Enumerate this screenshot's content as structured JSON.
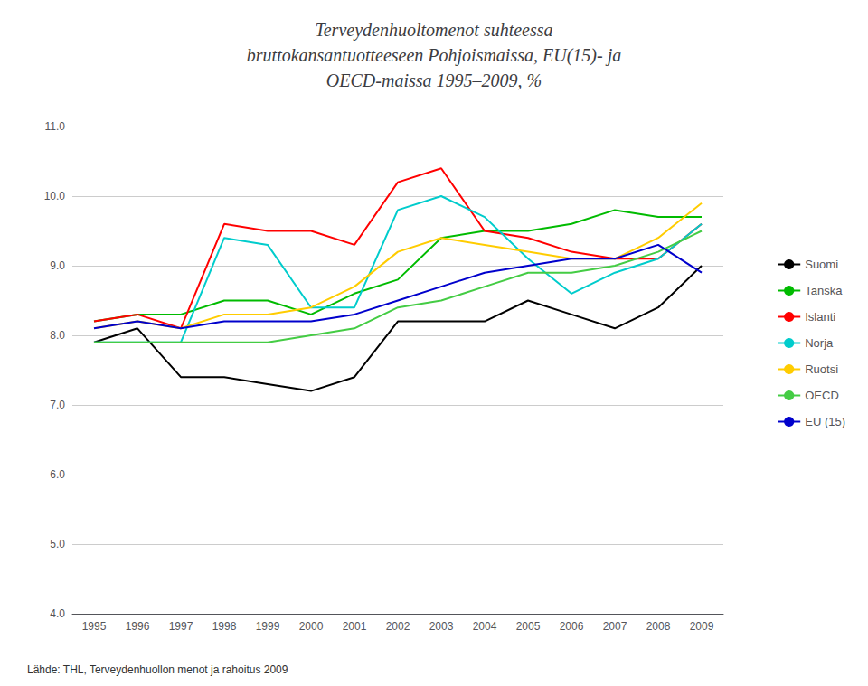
{
  "chart_data": {
    "type": "line",
    "title": "Terveydenhuoltomenot suhteessa\nbruttokansantuotteeseen Pohjoismaissa, EU(15)- ja\nOECD-maissa 1995–2009, %",
    "annotations": [
      "Lähde: THL, Terveydenhuollon menot ja rahoitus 2009"
    ],
    "x": [
      1995,
      1996,
      1997,
      1998,
      1999,
      2000,
      2001,
      2002,
      2003,
      2004,
      2005,
      2006,
      2007,
      2008,
      2009
    ],
    "xlim": [
      1994.5,
      2009.5
    ],
    "xticks": [
      1995,
      1996,
      1997,
      1998,
      1999,
      2000,
      2001,
      2002,
      2003,
      2004,
      2005,
      2006,
      2007,
      2008,
      2009
    ],
    "ylim": [
      4.0,
      11.0
    ],
    "yticks": [
      {
        "value": 4.0,
        "label": "4.0"
      },
      {
        "value": 5.0,
        "label": "5.0"
      },
      {
        "value": 6.0,
        "label": "6.0"
      },
      {
        "value": 7.0,
        "label": "7.0"
      },
      {
        "value": 8.0,
        "label": "8.0"
      },
      {
        "value": 9.0,
        "label": "9.0"
      },
      {
        "value": 10.0,
        "label": "10.0"
      },
      {
        "value": 11.0,
        "label": "11.0"
      }
    ],
    "grid": true,
    "legend": "right",
    "series": [
      {
        "name": "Suomi",
        "color": "#000000",
        "values": [
          7.9,
          8.1,
          7.4,
          7.4,
          7.3,
          7.2,
          7.4,
          8.2,
          8.2,
          8.2,
          8.5,
          8.3,
          8.1,
          8.4,
          9.0
        ]
      },
      {
        "name": "Tanska",
        "color": "#00bb00",
        "values": [
          8.2,
          8.3,
          8.3,
          8.5,
          8.5,
          8.3,
          8.6,
          8.8,
          9.4,
          9.5,
          9.5,
          9.6,
          9.8,
          9.7,
          9.7
        ]
      },
      {
        "name": "Islanti",
        "color": "#ff0000",
        "values": [
          8.2,
          8.3,
          8.1,
          9.6,
          9.5,
          9.5,
          9.3,
          10.2,
          10.4,
          9.5,
          9.4,
          9.2,
          9.1,
          9.1,
          9.6
        ]
      },
      {
        "name": "Norja",
        "color": "#00cccc",
        "values": [
          7.9,
          7.9,
          7.9,
          9.4,
          9.3,
          8.4,
          8.4,
          9.8,
          10.0,
          9.7,
          9.1,
          8.6,
          8.9,
          9.1,
          9.6
        ]
      },
      {
        "name": "Ruotsi",
        "color": "#ffcc00",
        "values": [
          8.1,
          8.2,
          8.1,
          8.3,
          8.3,
          8.4,
          8.7,
          9.2,
          9.4,
          9.3,
          9.2,
          9.1,
          9.1,
          9.4,
          9.9
        ]
      },
      {
        "name": "OECD",
        "color": "#44cc44",
        "values": [
          7.9,
          7.9,
          7.9,
          7.9,
          7.9,
          8.0,
          8.1,
          8.4,
          8.5,
          8.7,
          8.9,
          8.9,
          9.0,
          9.2,
          9.5
        ]
      },
      {
        "name": "EU (15)",
        "color": "#0000cc",
        "values": [
          8.1,
          8.2,
          8.1,
          8.2,
          8.2,
          8.2,
          8.3,
          8.5,
          8.7,
          8.9,
          9.0,
          9.1,
          9.1,
          9.3,
          8.9
        ]
      }
    ]
  }
}
